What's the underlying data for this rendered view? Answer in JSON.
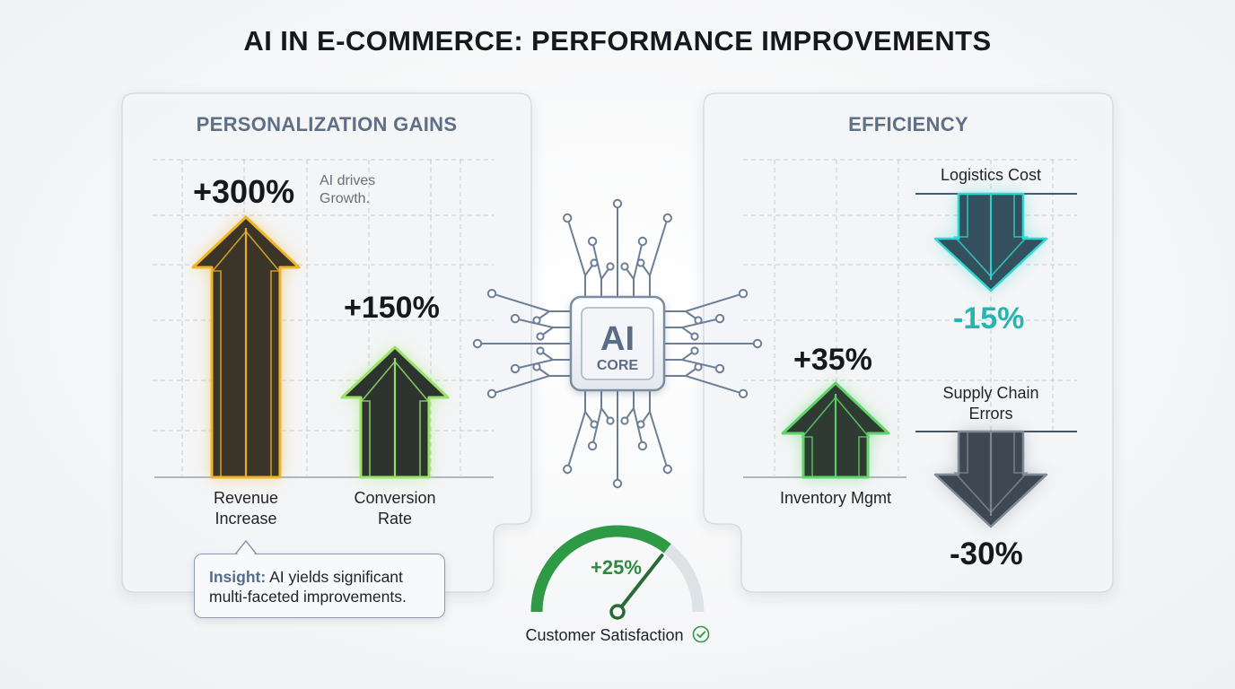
{
  "title": "AI IN E-COMMERCE: PERFORMANCE IMPROVEMENTS",
  "center": {
    "chip_title": "AI",
    "chip_subtitle": "CORE"
  },
  "insight": {
    "keyword": "Insight:",
    "line1": " AI yields significant",
    "line2": "multi-faceted improvements."
  },
  "colors": {
    "revenue": "#f0b429",
    "conversion": "#9be36a",
    "inventory": "#5ed46a",
    "logistics": "#2fd6cf",
    "supply": "#d8dde3",
    "gauge": "#2f9a46"
  },
  "chart_data": [
    {
      "type": "bar",
      "title": "PERSONALIZATION GAINS",
      "categories": [
        "Revenue Increase",
        "Conversion Rate"
      ],
      "values": [
        300,
        150
      ],
      "value_labels": [
        "+300%",
        "+150%"
      ],
      "label_lines": [
        [
          "Revenue",
          "Increase"
        ],
        [
          "Conversion",
          "Rate"
        ]
      ],
      "annotation": [
        "AI drives",
        "Growth."
      ],
      "grid": true
    },
    {
      "type": "bar",
      "title": "EFFICIENCY",
      "categories": [
        "Inventory Mgmt",
        "Logistics Cost",
        "Supply Chain Errors"
      ],
      "values": [
        35,
        -15,
        -30
      ],
      "value_labels": [
        "+35%",
        "-15%",
        "-30%"
      ],
      "label_lines": [
        [
          "Inventory Mgmt"
        ],
        [
          "Logistics Cost"
        ],
        [
          "Supply Chain",
          "Errors"
        ]
      ],
      "grid": true
    },
    {
      "type": "gauge",
      "label": "Customer Satisfaction",
      "value": 25,
      "value_label": "+25%",
      "icon": "check-circle-icon"
    }
  ]
}
